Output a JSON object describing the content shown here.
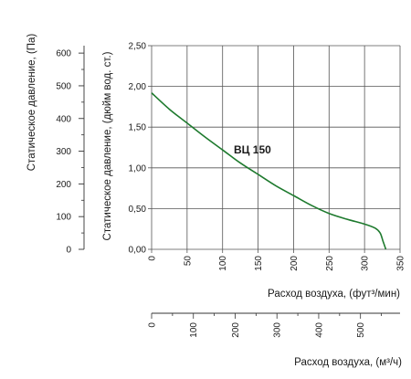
{
  "chart_data": {
    "type": "line",
    "series": [
      {
        "name": "ВЦ 150",
        "color": "#1e7a2e",
        "x": [
          0,
          25,
          50,
          75,
          100,
          125,
          150,
          175,
          200,
          225,
          250,
          275,
          300,
          315,
          322,
          326,
          330
        ],
        "y": [
          1.92,
          1.72,
          1.55,
          1.38,
          1.22,
          1.06,
          0.92,
          0.78,
          0.66,
          0.54,
          0.44,
          0.37,
          0.31,
          0.26,
          0.2,
          0.1,
          0.0
        ]
      }
    ],
    "x_axis": {
      "label": "Расход воздуха, (фут³/мин)",
      "range": [
        0,
        350
      ],
      "ticks": [
        "0",
        "50",
        "100",
        "150",
        "200",
        "250",
        "300",
        "350"
      ]
    },
    "y_axis": {
      "label": "Статическое давление, (дюйм вод. ст.)",
      "range": [
        0,
        2.5
      ],
      "ticks": [
        "0,00",
        "0,50",
        "1,00",
        "1,50",
        "2,00",
        "2,50"
      ]
    },
    "y2_axis": {
      "label": "Статическое давление, (Па)",
      "range": [
        0,
        622.7
      ],
      "ticks": [
        "0",
        "100",
        "200",
        "300",
        "400",
        "500",
        "600"
      ]
    },
    "x2_axis": {
      "label": "Расход воздуха, (м³/ч)",
      "range": [
        0,
        594.7
      ],
      "ticks": [
        "0",
        "100",
        "200",
        "300",
        "400",
        "500"
      ]
    },
    "grid": true,
    "grid_color": "#555555"
  }
}
